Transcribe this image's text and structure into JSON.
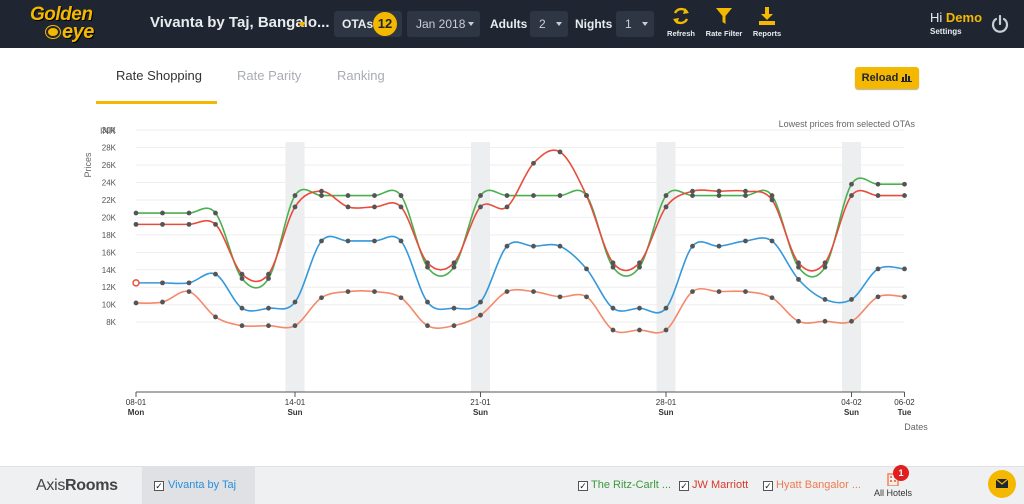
{
  "header": {
    "logo_text_top": "Golden",
    "logo_text_bottom": "eye",
    "hotel": "Vivanta by Taj, Bangalo...",
    "otas_label": "OTAs",
    "otas_count": "12",
    "month": "Jan 2018",
    "adults_label": "Adults",
    "adults_value": "2",
    "nights_label": "Nights",
    "nights_value": "1",
    "tools": [
      {
        "label": "Refresh",
        "icon": "refresh-icon"
      },
      {
        "label": "Rate Filter",
        "icon": "filter-icon"
      },
      {
        "label": "Reports",
        "icon": "download-icon"
      }
    ],
    "greeting_prefix": "Hi",
    "user_name": "Demo",
    "settings_label": "Settings"
  },
  "tabs": [
    {
      "label": "Rate Shopping",
      "active": true
    },
    {
      "label": "Rate Parity",
      "active": false
    },
    {
      "label": "Ranking",
      "active": false
    }
  ],
  "reload_label": "Reload",
  "chart_note": "Lowest prices from selected OTAs",
  "chart_data": {
    "type": "line",
    "yunit": "INR",
    "ylabel": "Prices",
    "xlabel": "Dates",
    "yticks": [
      "30K",
      "28K",
      "26K",
      "24K",
      "22K",
      "20K",
      "18K",
      "16K",
      "14K",
      "12K",
      "10K",
      "8K"
    ],
    "ylim": [
      0,
      30000
    ],
    "x_start_label": "08-01",
    "x_tick_labels": [
      {
        "day": 0,
        "date": "08-01",
        "dow": "Mon"
      },
      {
        "day": 6,
        "date": "14-01",
        "dow": "Sun"
      },
      {
        "day": 13,
        "date": "21-01",
        "dow": "Sun"
      },
      {
        "day": 20,
        "date": "28-01",
        "dow": "Sun"
      },
      {
        "day": 27,
        "date": "04-02",
        "dow": "Sun"
      },
      {
        "day": 29,
        "date": "06-02",
        "dow": "Tue"
      }
    ],
    "weekend_days": [
      6,
      13,
      20,
      27
    ],
    "series": [
      {
        "name": "The Ritz-Carlton",
        "color": "#4caf50",
        "values": [
          20500,
          20500,
          20500,
          20500,
          13000,
          13000,
          22500,
          22500,
          22500,
          22500,
          22500,
          14300,
          14300,
          22500,
          22500,
          22500,
          22500,
          22500,
          14300,
          14300,
          22500,
          22500,
          22500,
          22500,
          22500,
          14300,
          14300,
          23800,
          23800,
          23800
        ]
      },
      {
        "name": "JW Marriott",
        "color": "#e84c3d",
        "values": [
          19200,
          19200,
          19200,
          19200,
          13500,
          13500,
          21200,
          23000,
          21200,
          21200,
          21200,
          14800,
          14800,
          21200,
          21200,
          26200,
          27500,
          22500,
          14800,
          14800,
          21200,
          23000,
          23000,
          23000,
          22000,
          14800,
          14800,
          22500,
          22500,
          22500
        ]
      },
      {
        "name": "Vivanta by Taj",
        "color": "#3498db",
        "values": [
          12500,
          12500,
          12500,
          13500,
          9600,
          9600,
          10300,
          17300,
          17300,
          17300,
          17300,
          10300,
          9600,
          10300,
          16700,
          16700,
          16700,
          14100,
          9600,
          9600,
          9600,
          16700,
          16700,
          17300,
          17300,
          12900,
          10600,
          10600,
          14100,
          14100
        ]
      },
      {
        "name": "Hyatt Bangalore",
        "color": "#f4896b",
        "values": [
          10200,
          10300,
          11500,
          8600,
          7600,
          7600,
          7600,
          10800,
          11500,
          11500,
          10800,
          7600,
          7600,
          8800,
          11500,
          11500,
          10900,
          10900,
          7100,
          7100,
          7100,
          11500,
          11500,
          11500,
          10800,
          8100,
          8100,
          8100,
          10900,
          10900
        ]
      }
    ]
  },
  "footer": {
    "brand_part1": "Axis",
    "brand_part2": "Rooms",
    "own_hotel": "Vivanta by Taj",
    "competitors": [
      {
        "label": "The Ritz-Carlt ...",
        "color": "#3a9a3a"
      },
      {
        "label": "JW Marriott",
        "color": "#d83a2a"
      },
      {
        "label": "Hyatt Bangalor ...",
        "color": "#f07a50"
      }
    ],
    "all_hotels_label": "All Hotels",
    "all_hotels_badge": "1"
  }
}
